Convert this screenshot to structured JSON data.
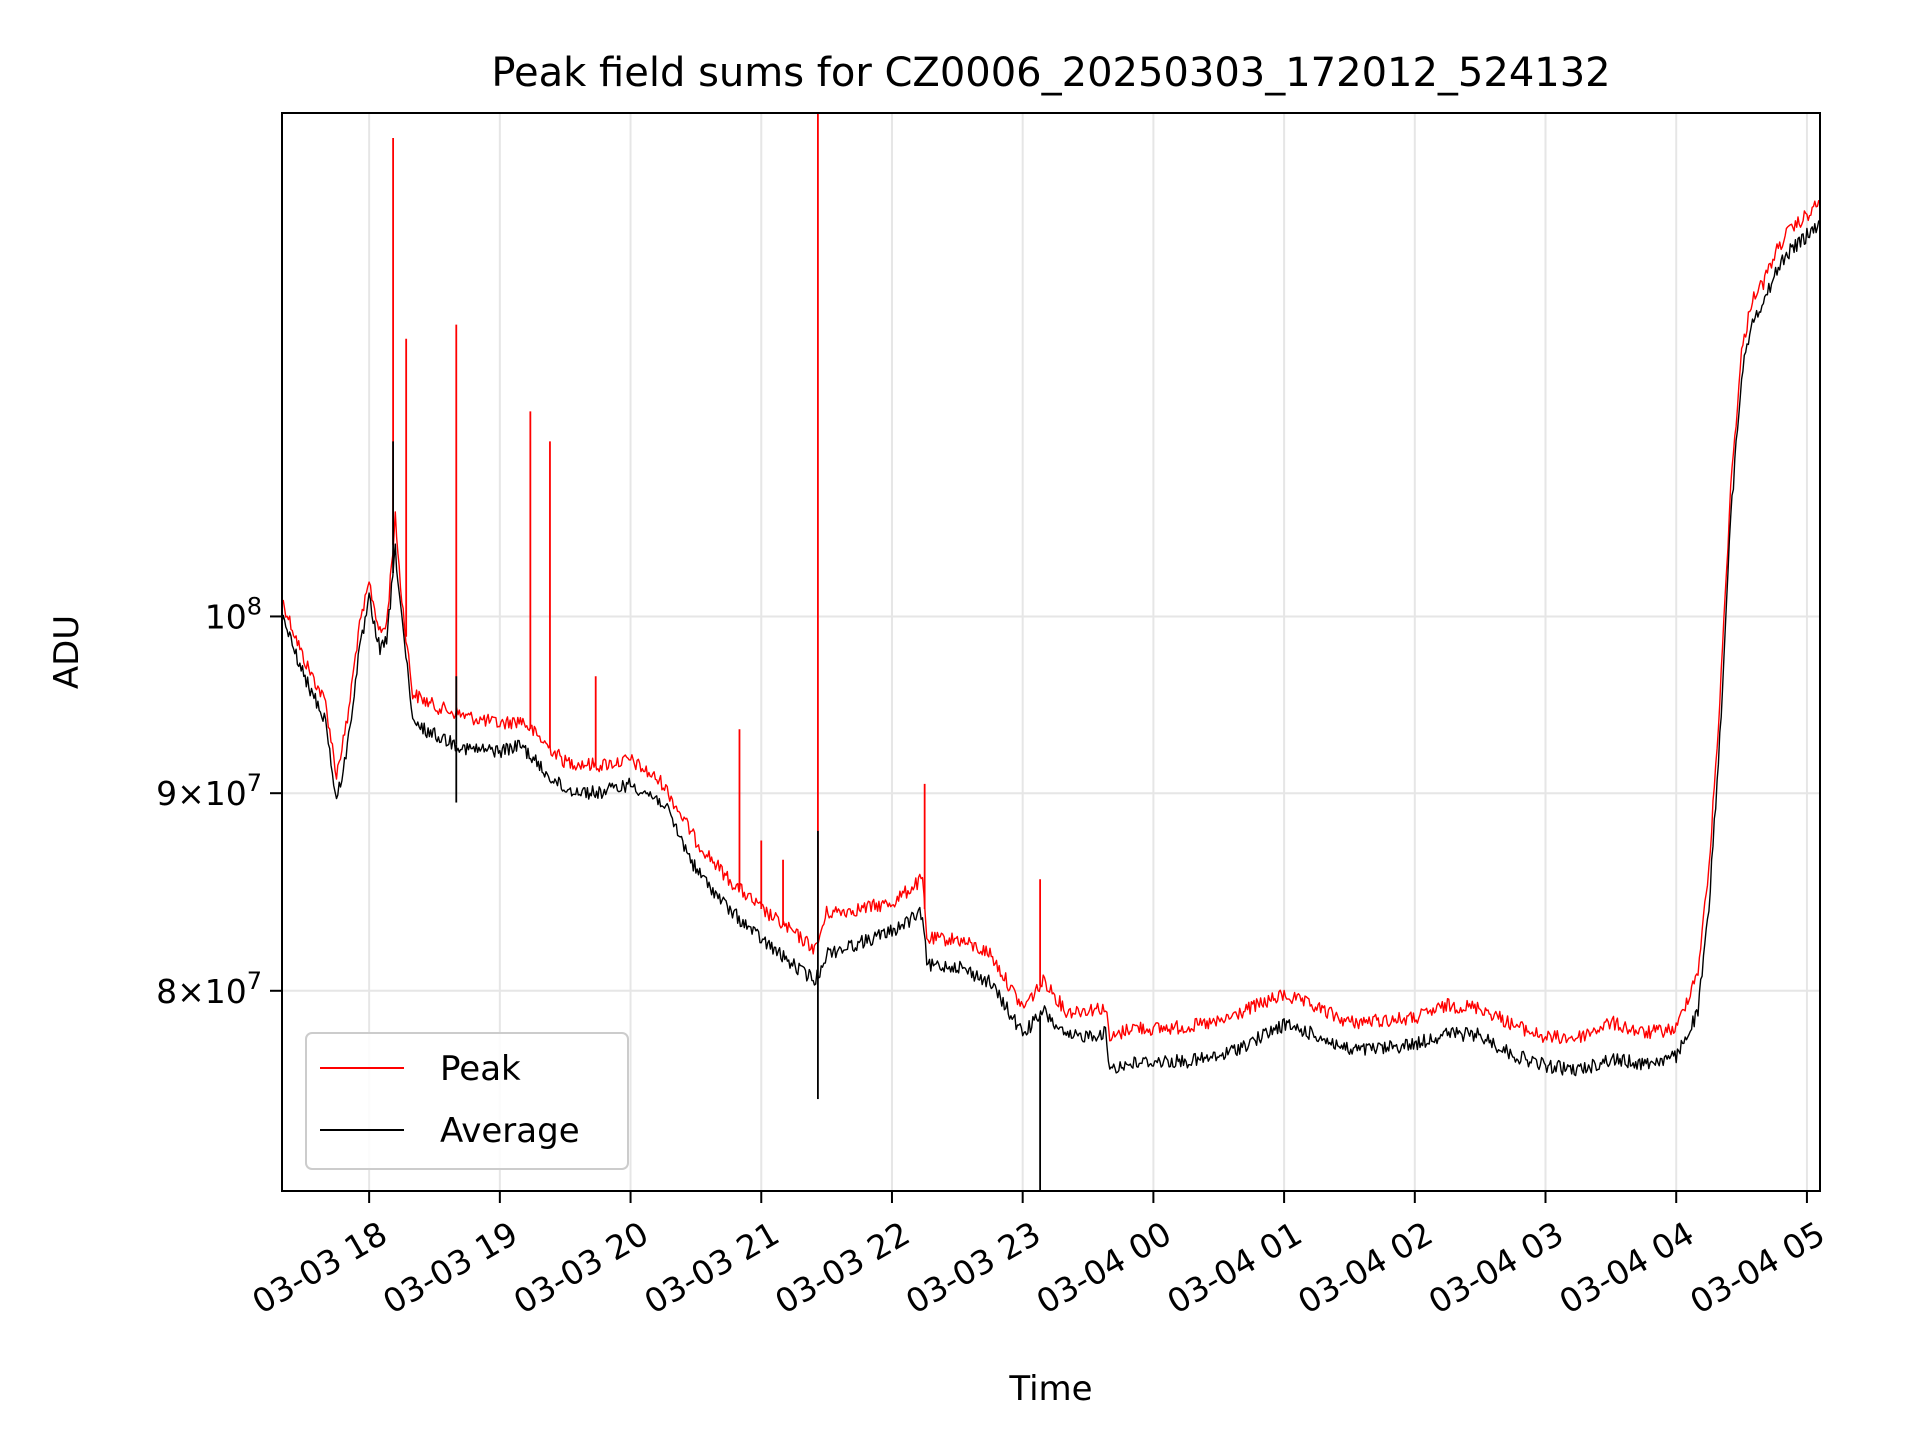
{
  "chart_data": {
    "type": "line",
    "title": "Peak field sums for CZ0006_20250303_172012_524132",
    "xlabel": "Time",
    "ylabel": "ADU",
    "y_scale": "log",
    "ylim": [
      71000000,
      135000000
    ],
    "x_range": [
      "2025-03-03 17:20",
      "2025-03-04 05:06"
    ],
    "grid": true,
    "legend_position": "lower-left",
    "x_ticks": [
      {
        "time": "2025-03-03 18:00",
        "label": "03-03 18"
      },
      {
        "time": "2025-03-03 19:00",
        "label": "03-03 19"
      },
      {
        "time": "2025-03-03 20:00",
        "label": "03-03 20"
      },
      {
        "time": "2025-03-03 21:00",
        "label": "03-03 21"
      },
      {
        "time": "2025-03-03 22:00",
        "label": "03-03 22"
      },
      {
        "time": "2025-03-03 23:00",
        "label": "03-03 23"
      },
      {
        "time": "2025-03-04 00:00",
        "label": "03-04 00"
      },
      {
        "time": "2025-03-04 01:00",
        "label": "03-04 01"
      },
      {
        "time": "2025-03-04 02:00",
        "label": "03-04 02"
      },
      {
        "time": "2025-03-04 03:00",
        "label": "03-04 03"
      },
      {
        "time": "2025-03-04 04:00",
        "label": "03-04 04"
      },
      {
        "time": "2025-03-04 05:00",
        "label": "03-04 05"
      }
    ],
    "y_ticks": [
      {
        "value": 80000000,
        "mant": "8",
        "exp": "7"
      },
      {
        "value": 90000000,
        "mant": "9",
        "exp": "7"
      },
      {
        "value": 100000000,
        "mant": "",
        "exp": "8"
      }
    ],
    "series": [
      {
        "name": "Peak",
        "color": "#ff0000",
        "x": [
          "2025-03-03 17:20",
          "2025-03-03 17:30",
          "2025-03-03 17:40",
          "2025-03-03 17:45",
          "2025-03-03 17:50",
          "2025-03-03 17:55",
          "2025-03-03 18:00",
          "2025-03-03 18:05",
          "2025-03-03 18:08",
          "2025-03-03 18:12",
          "2025-03-03 18:15",
          "2025-03-03 18:20",
          "2025-03-03 18:30",
          "2025-03-03 18:45",
          "2025-03-03 19:00",
          "2025-03-03 19:10",
          "2025-03-03 19:20",
          "2025-03-03 19:30",
          "2025-03-03 19:45",
          "2025-03-03 20:00",
          "2025-03-03 20:15",
          "2025-03-03 20:30",
          "2025-03-03 20:45",
          "2025-03-03 21:00",
          "2025-03-03 21:15",
          "2025-03-03 21:25",
          "2025-03-03 21:30",
          "2025-03-03 21:45",
          "2025-03-03 22:00",
          "2025-03-03 22:14",
          "2025-03-03 22:16",
          "2025-03-03 22:30",
          "2025-03-03 22:45",
          "2025-03-03 23:00",
          "2025-03-03 23:10",
          "2025-03-03 23:20",
          "2025-03-03 23:38",
          "2025-03-03 23:40",
          "2025-03-03 23:50",
          "2025-03-04 00:00",
          "2025-03-04 00:15",
          "2025-03-04 00:30",
          "2025-03-04 00:45",
          "2025-03-04 01:00",
          "2025-03-04 01:15",
          "2025-03-04 01:30",
          "2025-03-04 01:45",
          "2025-03-04 02:00",
          "2025-03-04 02:15",
          "2025-03-04 02:30",
          "2025-03-04 02:45",
          "2025-03-04 03:00",
          "2025-03-04 03:15",
          "2025-03-04 03:30",
          "2025-03-04 03:45",
          "2025-03-04 04:00",
          "2025-03-04 04:10",
          "2025-03-04 04:15",
          "2025-03-04 04:20",
          "2025-03-04 04:25",
          "2025-03-04 04:30",
          "2025-03-04 04:35",
          "2025-03-04 04:40",
          "2025-03-04 04:45",
          "2025-03-04 04:50",
          "2025-03-04 05:00",
          "2025-03-04 05:06"
        ],
        "values": [
          101000000,
          97500000,
          95000000,
          91000000,
          94000000,
          99000000,
          102000000,
          99000000,
          99500000,
          106000000,
          101000000,
          95500000,
          94800000,
          94200000,
          93800000,
          94000000,
          92800000,
          91700000,
          91500000,
          91800000,
          90500000,
          87500000,
          85500000,
          84000000,
          82800000,
          82000000,
          83800000,
          84000000,
          84300000,
          85500000,
          82500000,
          82500000,
          81800000,
          79200000,
          80500000,
          79000000,
          79200000,
          77700000,
          78300000,
          78200000,
          78300000,
          78500000,
          79200000,
          79800000,
          79200000,
          78500000,
          78600000,
          78700000,
          79300000,
          79200000,
          78400000,
          77800000,
          77800000,
          78500000,
          78000000,
          78200000,
          81000000,
          86000000,
          95000000,
          108000000,
          117000000,
          121000000,
          122000000,
          124000000,
          125500000,
          127000000,
          128000000
        ]
      },
      {
        "name": "Average",
        "color": "#000000",
        "x": [
          "2025-03-03 17:20",
          "2025-03-03 17:30",
          "2025-03-03 17:40",
          "2025-03-03 17:45",
          "2025-03-03 17:50",
          "2025-03-03 17:55",
          "2025-03-03 18:00",
          "2025-03-03 18:05",
          "2025-03-03 18:08",
          "2025-03-03 18:12",
          "2025-03-03 18:15",
          "2025-03-03 18:20",
          "2025-03-03 18:30",
          "2025-03-03 18:45",
          "2025-03-03 19:00",
          "2025-03-03 19:10",
          "2025-03-03 19:20",
          "2025-03-03 19:30",
          "2025-03-03 19:45",
          "2025-03-03 20:00",
          "2025-03-03 20:15",
          "2025-03-03 20:30",
          "2025-03-03 20:45",
          "2025-03-03 21:00",
          "2025-03-03 21:15",
          "2025-03-03 21:25",
          "2025-03-03 21:30",
          "2025-03-03 21:45",
          "2025-03-03 22:00",
          "2025-03-03 22:14",
          "2025-03-03 22:16",
          "2025-03-03 22:30",
          "2025-03-03 22:45",
          "2025-03-03 23:00",
          "2025-03-03 23:10",
          "2025-03-03 23:20",
          "2025-03-03 23:38",
          "2025-03-03 23:40",
          "2025-03-03 23:50",
          "2025-03-04 00:00",
          "2025-03-04 00:15",
          "2025-03-04 00:30",
          "2025-03-04 00:45",
          "2025-03-04 01:00",
          "2025-03-04 01:15",
          "2025-03-04 01:30",
          "2025-03-04 01:45",
          "2025-03-04 02:00",
          "2025-03-04 02:15",
          "2025-03-04 02:30",
          "2025-03-04 02:45",
          "2025-03-04 03:00",
          "2025-03-04 03:15",
          "2025-03-04 03:30",
          "2025-03-04 03:45",
          "2025-03-04 04:00",
          "2025-03-04 04:10",
          "2025-03-04 04:15",
          "2025-03-04 04:20",
          "2025-03-04 04:25",
          "2025-03-04 04:30",
          "2025-03-04 04:35",
          "2025-03-04 04:40",
          "2025-03-04 04:45",
          "2025-03-04 04:50",
          "2025-03-04 05:00",
          "2025-03-04 05:06"
        ],
        "values": [
          100000000,
          96500000,
          94000000,
          89500000,
          92500000,
          97500000,
          101000000,
          98000000,
          98500000,
          104000000,
          100000000,
          93800000,
          93200000,
          92400000,
          92300000,
          92600000,
          91200000,
          90200000,
          90000000,
          90500000,
          89500000,
          86000000,
          84000000,
          82500000,
          81200000,
          80500000,
          81800000,
          82300000,
          82900000,
          83800000,
          81200000,
          81200000,
          80400000,
          78000000,
          79000000,
          77800000,
          78000000,
          76400000,
          76600000,
          76700000,
          76700000,
          76900000,
          77600000,
          78400000,
          77900000,
          77200000,
          77300000,
          77500000,
          78000000,
          77900000,
          77000000,
          76500000,
          76300000,
          76800000,
          76600000,
          76900000,
          79000000,
          84000000,
          93000000,
          106000000,
          115500000,
          119500000,
          120500000,
          122500000,
          124000000,
          125500000,
          126500000
        ]
      }
    ],
    "spikes": [
      {
        "series": "Peak",
        "time": "2025-03-03 18:11",
        "value": 133000000
      },
      {
        "series": "Peak",
        "time": "2025-03-03 18:17",
        "value": 118000000
      },
      {
        "series": "Peak",
        "time": "2025-03-03 18:40",
        "value": 119000000
      },
      {
        "series": "Peak",
        "time": "2025-03-03 19:14",
        "value": 113000000
      },
      {
        "series": "Peak",
        "time": "2025-03-03 19:23",
        "value": 111000000
      },
      {
        "series": "Peak",
        "time": "2025-03-03 19:44",
        "value": 96500000
      },
      {
        "series": "Peak",
        "time": "2025-03-03 20:50",
        "value": 93500000
      },
      {
        "series": "Peak",
        "time": "2025-03-03 21:00",
        "value": 87500000
      },
      {
        "series": "Peak",
        "time": "2025-03-03 21:10",
        "value": 86500000
      },
      {
        "series": "Peak",
        "time": "2025-03-03 21:26",
        "value": 135000000
      },
      {
        "series": "Peak",
        "time": "2025-03-03 22:15",
        "value": 90500000
      },
      {
        "series": "Peak",
        "time": "2025-03-03 23:08",
        "value": 85500000
      },
      {
        "series": "Average",
        "time": "2025-03-03 18:11",
        "value": 111000000
      },
      {
        "series": "Average",
        "time": "2025-03-03 18:40",
        "value": 96500000
      },
      {
        "series": "Average",
        "time": "2025-03-03 18:40",
        "value": 89500000
      },
      {
        "series": "Average",
        "time": "2025-03-03 21:26",
        "value": 75000000
      },
      {
        "series": "Average",
        "time": "2025-03-03 21:26",
        "value": 88000000
      },
      {
        "series": "Average",
        "time": "2025-03-03 23:08",
        "value": 71000000
      }
    ]
  }
}
